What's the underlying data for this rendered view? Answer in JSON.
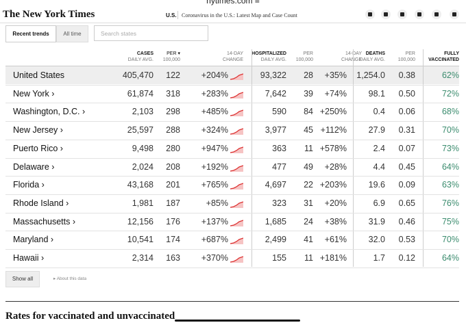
{
  "url": "nytimes.com",
  "header": {
    "logo": "The New York Times",
    "section": "U.S.",
    "headline": "Coronavirus in the U.S.: Latest Map and Case Count"
  },
  "tabs": [
    "Recent trends",
    "All time"
  ],
  "search_placeholder": "Search states",
  "table": {
    "columns": [
      {
        "top": "CASES",
        "bottom": "DAILY AVG."
      },
      {
        "top": "PER",
        "bottom": "100,000"
      },
      {
        "top": "14-DAY",
        "bottom": "CHANGE"
      },
      {
        "top": "HOSPITALIZED",
        "bottom": "DAILY AVG."
      },
      {
        "top": "PER",
        "bottom": "100,000"
      },
      {
        "top": "14-DAY",
        "bottom": "CHANGE"
      },
      {
        "top": "DEATHS",
        "bottom": "DAILY AVG."
      },
      {
        "top": "PER",
        "bottom": "100,000"
      },
      {
        "top": "FULLY",
        "bottom": "VACCINATED"
      }
    ],
    "rows": [
      [
        "United States",
        "405,470",
        "122",
        "+204%",
        "93,322",
        "28",
        "+35%",
        "1,254.0",
        "0.38",
        "62%"
      ],
      [
        "New York ›",
        "61,874",
        "318",
        "+283%",
        "7,642",
        "39",
        "+74%",
        "98.1",
        "0.50",
        "72%"
      ],
      [
        "Washington, D.C. ›",
        "2,103",
        "298",
        "+485%",
        "590",
        "84",
        "+250%",
        "0.4",
        "0.06",
        "68%"
      ],
      [
        "New Jersey ›",
        "25,597",
        "288",
        "+324%",
        "3,977",
        "45",
        "+112%",
        "27.9",
        "0.31",
        "70%"
      ],
      [
        "Puerto Rico ›",
        "9,498",
        "280",
        "+947%",
        "363",
        "11",
        "+578%",
        "2.4",
        "0.07",
        "73%"
      ],
      [
        "Delaware ›",
        "2,024",
        "208",
        "+192%",
        "477",
        "49",
        "+28%",
        "4.4",
        "0.45",
        "64%"
      ],
      [
        "Florida ›",
        "43,168",
        "201",
        "+765%",
        "4,697",
        "22",
        "+203%",
        "19.6",
        "0.09",
        "63%"
      ],
      [
        "Rhode Island ›",
        "1,981",
        "187",
        "+85%",
        "323",
        "31",
        "+20%",
        "6.9",
        "0.65",
        "76%"
      ],
      [
        "Massachusetts ›",
        "12,156",
        "176",
        "+137%",
        "1,685",
        "24",
        "+38%",
        "31.9",
        "0.46",
        "75%"
      ],
      [
        "Maryland ›",
        "10,541",
        "174",
        "+687%",
        "2,499",
        "41",
        "+61%",
        "32.0",
        "0.53",
        "70%"
      ],
      [
        "Hawaii ›",
        "2,314",
        "163",
        "+370%",
        "155",
        "11",
        "+181%",
        "1.7",
        "0.12",
        "64%"
      ]
    ]
  },
  "show_all": "Show all",
  "about": "About this data",
  "section_heading": "Rates for vaccinated and unvaccinated"
}
